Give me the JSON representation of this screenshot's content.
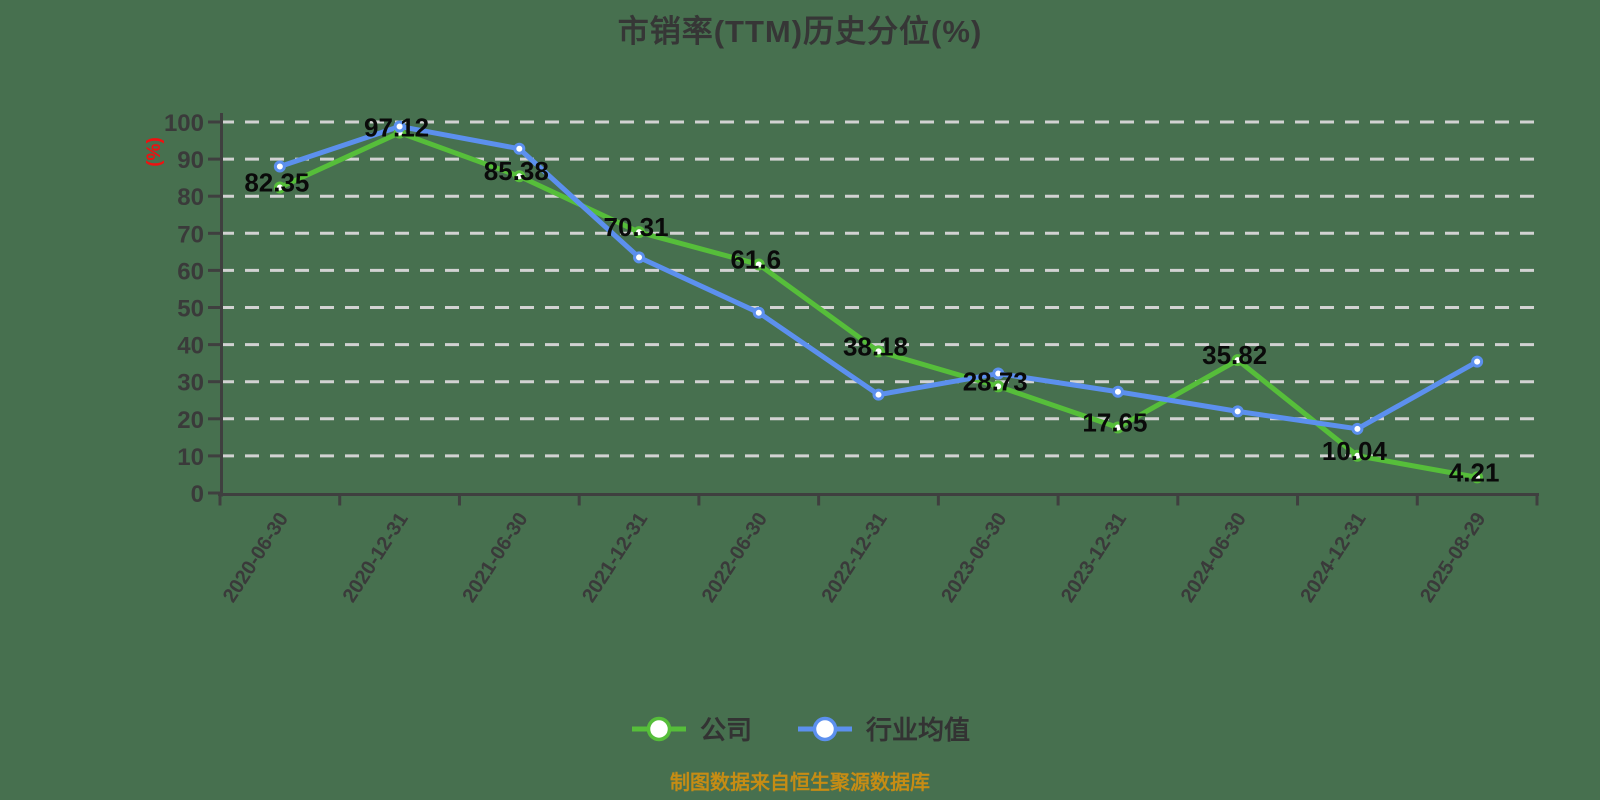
{
  "title": "市销率(TTM)历史分位(%)",
  "y_axis": {
    "unit_label": "(%)",
    "ticks": [
      0,
      10,
      20,
      30,
      40,
      50,
      60,
      70,
      80,
      90,
      100
    ]
  },
  "source_note": "制图数据来自恒生聚源数据库",
  "colors": {
    "background": "#47704f",
    "company": "#56be3a",
    "industry": "#5c90ee",
    "grid": "#d2d2d2",
    "axis": "#3f3f3f",
    "tick_label": "#3a3a3a",
    "data_label": "#0a0a0a",
    "title_text": "#363636",
    "legend_text": "#333333",
    "unit_label": "#ee1111",
    "source_text": "#c68c14",
    "marker_fill": "#ffffff"
  },
  "chart_data": {
    "type": "line",
    "title": "市销率(TTM)历史分位(%)",
    "ylabel": "(%)",
    "ylim": [
      0,
      100
    ],
    "y_tick_step": 10,
    "grid": "dashed-horizontal",
    "legend_position": "bottom",
    "categories": [
      "2020-06-30",
      "2020-12-31",
      "2021-06-30",
      "2021-12-31",
      "2022-06-30",
      "2022-12-31",
      "2023-06-30",
      "2023-12-31",
      "2024-06-30",
      "2024-12-31",
      "2025-08-29"
    ],
    "series": [
      {
        "name": "公司",
        "color_key": "company",
        "show_labels": true,
        "values": [
          82.35,
          97.12,
          85.38,
          70.31,
          61.6,
          38.18,
          28.73,
          17.65,
          35.82,
          10.04,
          4.21
        ],
        "labels": [
          "82.35",
          "97.12",
          "85.38",
          "70.31",
          "61.6",
          "38.18",
          "28.73",
          "17.65",
          "35.82",
          "10.04",
          "4.21"
        ]
      },
      {
        "name": "行业均值",
        "color_key": "industry",
        "show_labels": false,
        "values": [
          88,
          98.8,
          92.8,
          63.5,
          48.6,
          26.5,
          32.2,
          27.3,
          22,
          17.3,
          35.4
        ],
        "labels": []
      }
    ]
  },
  "legend": {
    "items": [
      {
        "label": "公司",
        "color_key": "company"
      },
      {
        "label": "行业均值",
        "color_key": "industry"
      }
    ]
  }
}
